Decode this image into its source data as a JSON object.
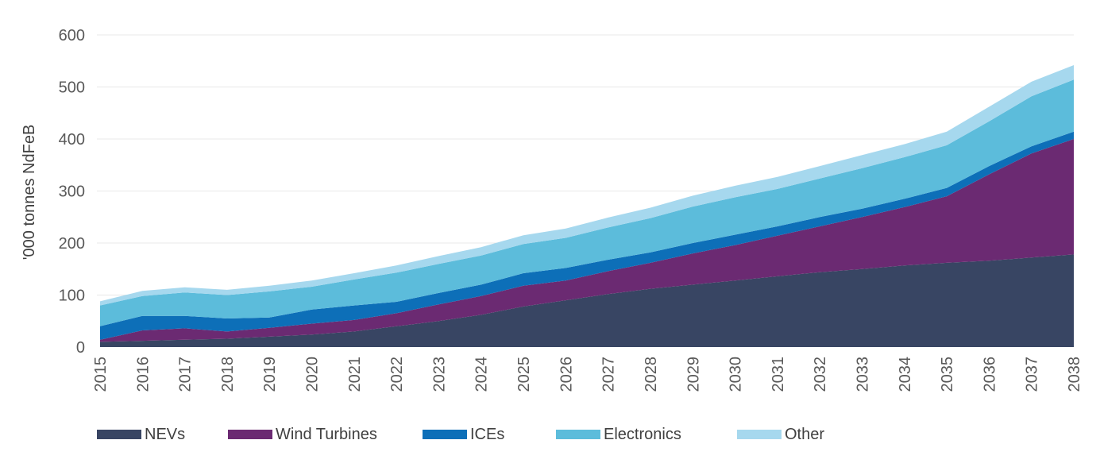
{
  "chart_data": {
    "type": "area",
    "stacked": true,
    "ylabel": "'000 tonnes NdFeB",
    "xlabel": "",
    "ylim": [
      0,
      600
    ],
    "y_ticks": [
      "0",
      "100",
      "200",
      "300",
      "400",
      "500",
      "600"
    ],
    "categories": [
      "2015",
      "2016",
      "2017",
      "2018",
      "2019",
      "2020",
      "2021",
      "2022",
      "2023",
      "2024",
      "2025",
      "2026",
      "2027",
      "2028",
      "2029",
      "2030",
      "2031",
      "2032",
      "2033",
      "2034",
      "2035",
      "2036",
      "2037",
      "2038"
    ],
    "grid": true,
    "legend_position": "bottom",
    "series": [
      {
        "name": "NEVs",
        "color": "#384563",
        "values": [
          10,
          12,
          14,
          16,
          20,
          24,
          30,
          40,
          50,
          62,
          78,
          90,
          102,
          112,
          120,
          128,
          136,
          144,
          150,
          157,
          162,
          166,
          172,
          178
        ]
      },
      {
        "name": "Wind Turbines",
        "color": "#6b2a72",
        "values": [
          4,
          20,
          22,
          14,
          17,
          21,
          22,
          25,
          32,
          36,
          40,
          38,
          44,
          50,
          60,
          68,
          78,
          88,
          100,
          112,
          128,
          166,
          200,
          222
        ]
      },
      {
        "name": "ICEs",
        "color": "#0d6fb8",
        "values": [
          26,
          28,
          24,
          25,
          20,
          27,
          28,
          22,
          22,
          22,
          24,
          24,
          22,
          20,
          20,
          20,
          18,
          18,
          16,
          16,
          16,
          16,
          14,
          14
        ]
      },
      {
        "name": "Electronics",
        "color": "#5cbcdb",
        "values": [
          40,
          38,
          45,
          45,
          50,
          44,
          50,
          56,
          56,
          56,
          56,
          58,
          62,
          66,
          70,
          72,
          72,
          74,
          78,
          80,
          82,
          86,
          96,
          100
        ]
      },
      {
        "name": "Other",
        "color": "#a6d8ee",
        "values": [
          8,
          10,
          10,
          10,
          11,
          12,
          12,
          14,
          15,
          16,
          17,
          18,
          19,
          20,
          21,
          22,
          23,
          24,
          25,
          25,
          26,
          28,
          28,
          28
        ]
      }
    ]
  }
}
